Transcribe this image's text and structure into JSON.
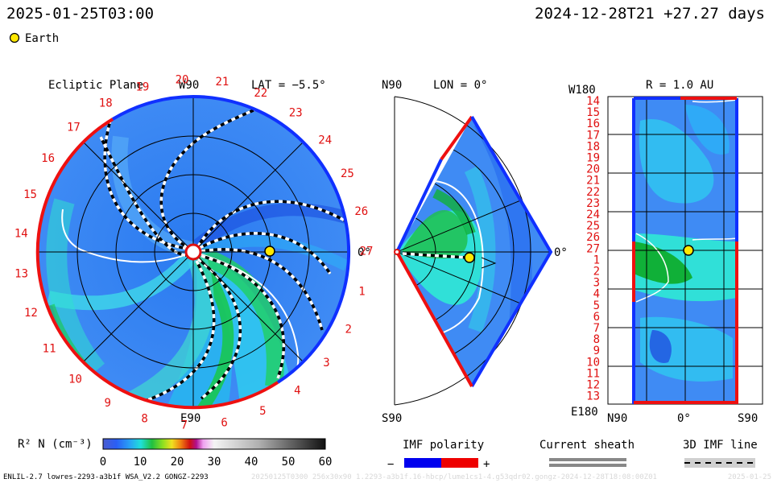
{
  "header": {
    "left_time": "2025-01-25T03:00",
    "right_time": "2024-12-28T21 +27.27 days",
    "earth_legend": "Earth"
  },
  "ecliptic": {
    "title": "Ecliptic Plane",
    "w90": "W90",
    "lat": "LAT = −5.5°",
    "e90": "E90",
    "zero": "0°",
    "sectors": [
      "1",
      "2",
      "3",
      "4",
      "5",
      "6",
      "7",
      "8",
      "9",
      "10",
      "11",
      "12",
      "13",
      "14",
      "15",
      "16",
      "17",
      "18",
      "19",
      "20",
      "21",
      "22",
      "23",
      "24",
      "25",
      "26",
      "27"
    ]
  },
  "meridional": {
    "n90": "N90",
    "lon": "LON = 0°",
    "s90": "S90",
    "zero": "0°"
  },
  "map_panel": {
    "title": "R = 1.0 AU",
    "w180": "W180",
    "e180": "E180",
    "n90": "N90",
    "zero": "0°",
    "s90": "S90",
    "rows": [
      "14",
      "15",
      "16",
      "17",
      "18",
      "19",
      "20",
      "21",
      "22",
      "23",
      "24",
      "25",
      "26",
      "27",
      "1",
      "2",
      "3",
      "4",
      "5",
      "6",
      "7",
      "8",
      "9",
      "10",
      "11",
      "12",
      "13"
    ]
  },
  "legend": {
    "colorbar_label": "R² N (cm⁻³)",
    "ticks": [
      "0",
      "10",
      "20",
      "30",
      "40",
      "50",
      "60"
    ],
    "imf_title": "IMF polarity",
    "imf_minus": "−",
    "imf_plus": "+",
    "sheath_title": "Current sheath",
    "imf_line_title": "3D IMF line",
    "minus_color": "#0000ee",
    "plus_color": "#ee0000"
  },
  "footer": {
    "left_text": "ENLIL-2.7 lowres-2293-a3b1f WSA_V2.2 GONGZ-2293",
    "mid_text": "20250125T0300 256x30x90 1.2293-a3b1f.16-hbcp/lume1cs1-4.g53qdr02.gongz-2024-12-28T18:08:00Z01",
    "right_text": "2025-01-25"
  }
}
